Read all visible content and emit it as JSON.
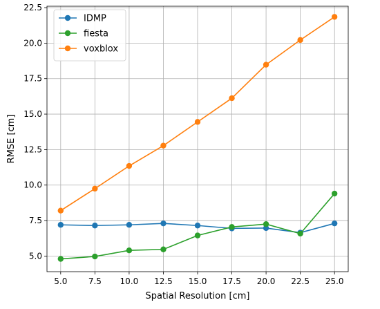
{
  "chart_data": {
    "type": "line",
    "title": "",
    "xlabel": "Spatial Resolution [cm]",
    "ylabel": "RMSE [cm]",
    "xlim": [
      4.0,
      26.0
    ],
    "ylim": [
      3.9,
      22.6
    ],
    "x_ticks": [
      5.0,
      7.5,
      10.0,
      12.5,
      15.0,
      17.5,
      20.0,
      22.5,
      25.0
    ],
    "x_tick_labels": [
      "5.0",
      "7.5",
      "10.0",
      "12.5",
      "15.0",
      "17.5",
      "20.0",
      "22.5",
      "25.0"
    ],
    "y_ticks": [
      5.0,
      7.5,
      10.0,
      12.5,
      15.0,
      17.5,
      20.0,
      22.5
    ],
    "y_tick_labels": [
      "5.0",
      "7.5",
      "10.0",
      "12.5",
      "15.0",
      "17.5",
      "20.0",
      "22.5"
    ],
    "grid": true,
    "legend_position": "top-left",
    "x": [
      5.0,
      7.5,
      10.0,
      12.5,
      15.0,
      17.5,
      20.0,
      22.5,
      25.0
    ],
    "series": [
      {
        "name": "IDMP",
        "color": "#1f77b4",
        "marker": "circle",
        "values": [
          7.2,
          7.15,
          7.2,
          7.3,
          7.15,
          6.95,
          6.97,
          6.65,
          7.3
        ]
      },
      {
        "name": "fiesta",
        "color": "#2ca02c",
        "marker": "circle",
        "values": [
          4.8,
          4.97,
          5.4,
          5.47,
          6.45,
          7.05,
          7.25,
          6.58,
          9.4
        ]
      },
      {
        "name": "voxblox",
        "color": "#ff7f0e",
        "marker": "circle",
        "values": [
          8.2,
          9.75,
          11.35,
          12.78,
          14.45,
          16.12,
          18.48,
          20.22,
          21.85
        ]
      }
    ]
  }
}
